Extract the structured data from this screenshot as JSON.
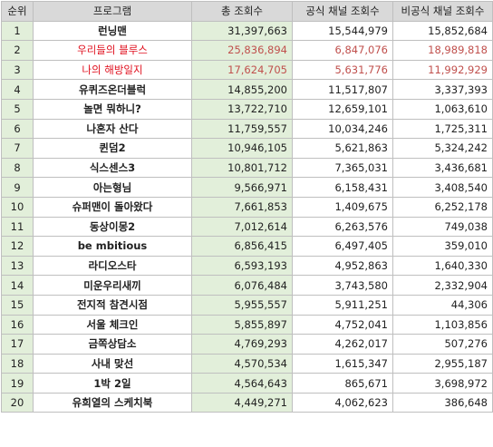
{
  "headers": {
    "rank": "순위",
    "program": "프로그램",
    "total": "총 조회수",
    "official": "공식 채널 조회수",
    "unofficial": "비공식 채널 조회수"
  },
  "rows": [
    {
      "rank": "1",
      "program": "런닝맨",
      "total": "31,397,663",
      "official": "15,544,979",
      "unofficial": "15,852,684",
      "highlight": false
    },
    {
      "rank": "2",
      "program": "우리들의 블루스",
      "total": "25,836,894",
      "official": "6,847,076",
      "unofficial": "18,989,818",
      "highlight": true
    },
    {
      "rank": "3",
      "program": "나의 해방일지",
      "total": "17,624,705",
      "official": "5,631,776",
      "unofficial": "11,992,929",
      "highlight": true
    },
    {
      "rank": "4",
      "program": "유퀴즈온더블럭",
      "total": "14,855,200",
      "official": "11,517,807",
      "unofficial": "3,337,393",
      "highlight": false
    },
    {
      "rank": "5",
      "program": "놀면 뭐하니?",
      "total": "13,722,710",
      "official": "12,659,101",
      "unofficial": "1,063,610",
      "highlight": false
    },
    {
      "rank": "6",
      "program": "나혼자 산다",
      "total": "11,759,557",
      "official": "10,034,246",
      "unofficial": "1,725,311",
      "highlight": false
    },
    {
      "rank": "7",
      "program": "퀸덤2",
      "total": "10,946,105",
      "official": "5,621,863",
      "unofficial": "5,324,242",
      "highlight": false
    },
    {
      "rank": "8",
      "program": "식스센스3",
      "total": "10,801,712",
      "official": "7,365,031",
      "unofficial": "3,436,681",
      "highlight": false
    },
    {
      "rank": "9",
      "program": "아는형님",
      "total": "9,566,971",
      "official": "6,158,431",
      "unofficial": "3,408,540",
      "highlight": false
    },
    {
      "rank": "10",
      "program": "슈퍼맨이 돌아왔다",
      "total": "7,661,853",
      "official": "1,409,675",
      "unofficial": "6,252,178",
      "highlight": false
    },
    {
      "rank": "11",
      "program": "동상이몽2",
      "total": "7,012,614",
      "official": "6,263,576",
      "unofficial": "749,038",
      "highlight": false
    },
    {
      "rank": "12",
      "program": "be mbitious",
      "total": "6,856,415",
      "official": "6,497,405",
      "unofficial": "359,010",
      "highlight": false
    },
    {
      "rank": "13",
      "program": "라디오스타",
      "total": "6,593,193",
      "official": "4,952,863",
      "unofficial": "1,640,330",
      "highlight": false
    },
    {
      "rank": "14",
      "program": "미운우리새끼",
      "total": "6,076,484",
      "official": "3,743,580",
      "unofficial": "2,332,904",
      "highlight": false
    },
    {
      "rank": "15",
      "program": "전지적 참견시점",
      "total": "5,955,557",
      "official": "5,911,251",
      "unofficial": "44,306",
      "highlight": false
    },
    {
      "rank": "16",
      "program": "서울 체크인",
      "total": "5,855,897",
      "official": "4,752,041",
      "unofficial": "1,103,856",
      "highlight": false
    },
    {
      "rank": "17",
      "program": "금쪽상담소",
      "total": "4,769,293",
      "official": "4,262,017",
      "unofficial": "507,276",
      "highlight": false
    },
    {
      "rank": "18",
      "program": "사내 맞선",
      "total": "4,570,534",
      "official": "1,615,347",
      "unofficial": "2,955,187",
      "highlight": false
    },
    {
      "rank": "19",
      "program": "1박 2일",
      "total": "4,564,643",
      "official": "865,671",
      "unofficial": "3,698,972",
      "highlight": false
    },
    {
      "rank": "20",
      "program": "유희열의 스케치북",
      "total": "4,449,271",
      "official": "4,062,623",
      "unofficial": "386,648",
      "highlight": false
    }
  ],
  "colors": {
    "header_bg": "#d9d9d9",
    "rank_bg": "#e2efda",
    "total_bg": "#e2efda",
    "highlight_text": "#e0101e",
    "border": "#bfbfbf"
  }
}
